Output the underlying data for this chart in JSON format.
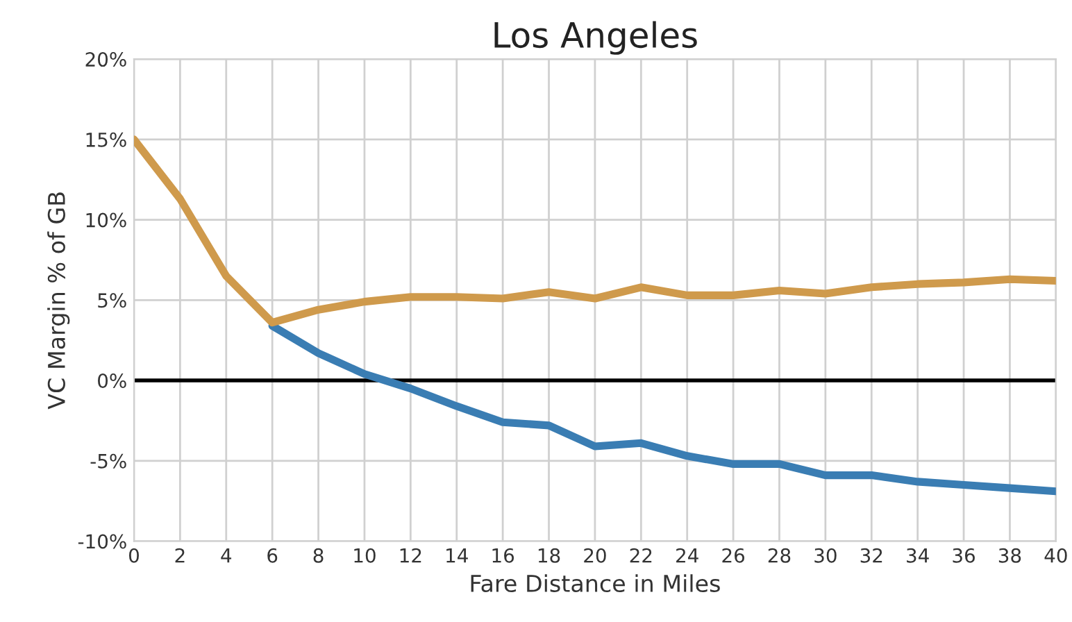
{
  "chart_data": {
    "type": "line",
    "title": "Los Angeles",
    "xlabel": "Fare Distance in Miles",
    "ylabel": "VC Margin % of GB",
    "x": [
      0,
      2,
      4,
      6,
      8,
      10,
      12,
      14,
      16,
      18,
      20,
      22,
      24,
      26,
      28,
      30,
      32,
      34,
      36,
      38,
      40
    ],
    "series": [
      {
        "color": "#3a7db3",
        "values": [
          null,
          null,
          null,
          3.4,
          1.7,
          0.4,
          -0.5,
          -1.6,
          -2.6,
          -2.8,
          -4.1,
          -3.9,
          -4.7,
          -5.2,
          -5.2,
          -5.9,
          -5.9,
          -6.3,
          -6.5,
          -6.7,
          -6.9
        ]
      },
      {
        "color": "#cf9a4c",
        "values": [
          15,
          11.3,
          6.5,
          3.6,
          4.4,
          4.9,
          5.2,
          5.2,
          5.1,
          5.5,
          5.1,
          5.8,
          5.3,
          5.3,
          5.6,
          5.4,
          5.8,
          6.0,
          6.1,
          6.3,
          6.2
        ]
      }
    ],
    "xlim": [
      0,
      40
    ],
    "xticks": [
      0,
      2,
      4,
      6,
      8,
      10,
      12,
      14,
      16,
      18,
      20,
      22,
      24,
      26,
      28,
      30,
      32,
      34,
      36,
      38,
      40
    ],
    "ylim": [
      -10,
      20
    ],
    "yticks": [
      {
        "value": -10,
        "label": "-10%"
      },
      {
        "value": -5,
        "label": "-5%"
      },
      {
        "value": 0,
        "label": "0%"
      },
      {
        "value": 5,
        "label": "5%"
      },
      {
        "value": 10,
        "label": "10%"
      },
      {
        "value": 15,
        "label": "15%"
      },
      {
        "value": 20,
        "label": "20%"
      }
    ],
    "ref_lines": [
      {
        "axis": "y",
        "value": 0,
        "color": "#000000"
      }
    ],
    "grid": true,
    "marker": "none",
    "line_style": "solid"
  }
}
